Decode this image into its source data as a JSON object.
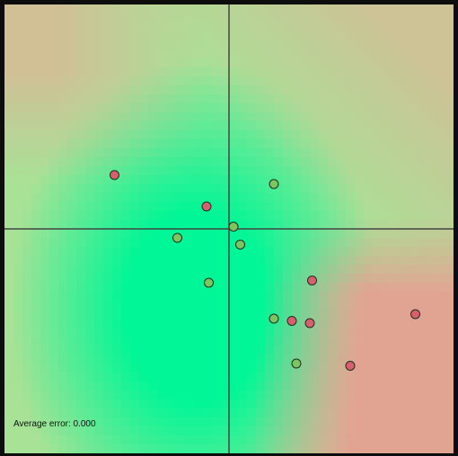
{
  "error_label": "Average error: 0.000",
  "colors": {
    "frame": "#0d0d0d",
    "green_point": "#7cc55f",
    "red_point": "#d95f6e",
    "point_stroke": "#1f2f20",
    "axis": "#444444"
  },
  "points": [
    {
      "x": -0.51,
      "y": 0.24,
      "label": "red"
    },
    {
      "x": -0.1,
      "y": 0.1,
      "label": "red"
    },
    {
      "x": 0.2,
      "y": 0.2,
      "label": "green"
    },
    {
      "x": 0.02,
      "y": 0.01,
      "label": "green"
    },
    {
      "x": -0.23,
      "y": -0.04,
      "label": "green"
    },
    {
      "x": 0.05,
      "y": -0.07,
      "label": "green"
    },
    {
      "x": -0.09,
      "y": -0.24,
      "label": "green"
    },
    {
      "x": 0.37,
      "y": -0.23,
      "label": "red"
    },
    {
      "x": 0.2,
      "y": -0.4,
      "label": "green"
    },
    {
      "x": 0.28,
      "y": -0.41,
      "label": "red"
    },
    {
      "x": 0.36,
      "y": -0.42,
      "label": "red"
    },
    {
      "x": 0.83,
      "y": -0.38,
      "label": "red"
    },
    {
      "x": 0.3,
      "y": -0.6,
      "label": "green"
    },
    {
      "x": 0.54,
      "y": -0.61,
      "label": "red"
    }
  ]
}
